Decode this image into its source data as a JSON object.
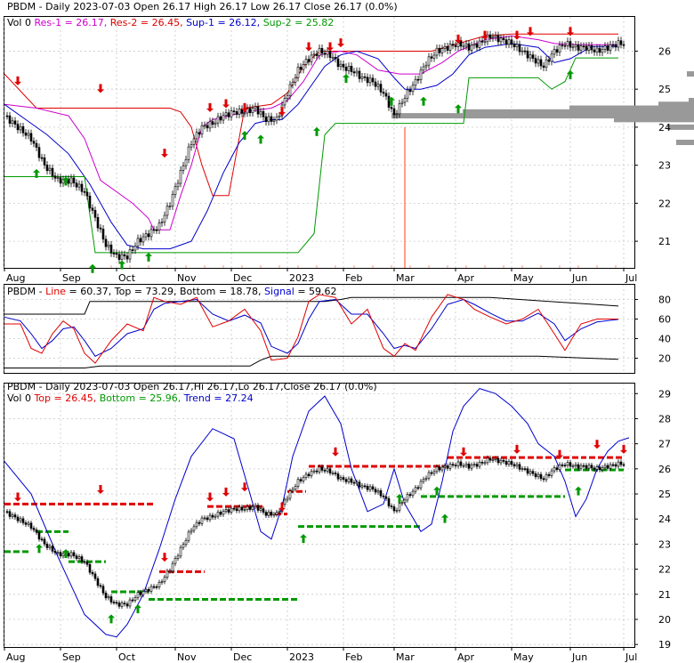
{
  "colors": {
    "red": "#e00000",
    "green": "#009900",
    "blue": "#0000cc",
    "magenta": "#cc00cc",
    "orange": "#ff8060",
    "grey": "#999999",
    "black": "#000000"
  },
  "chart_data": [
    {
      "type": "line",
      "panel": "price",
      "header_line1": "PBDM - Daily 2023-07-03 Open 26.17   High 26.17   Low 26.17   Close 26.17 (0.0%)",
      "header_line2": [
        {
          "text": "Vol 0 ",
          "color": "black"
        },
        {
          "text": "Res-1 = 26.17, ",
          "color": "magenta"
        },
        {
          "text": "Res-2 = 26.45, ",
          "color": "red"
        },
        {
          "text": "Sup-1 = 26.12, ",
          "color": "blue"
        },
        {
          "text": "Sup-2 = 25.82",
          "color": "green"
        }
      ],
      "x_ticks": [
        "Aug",
        "Sep",
        "Oct",
        "Nov",
        "Dec",
        "2023",
        "Feb",
        "Mar",
        "Apr",
        "May",
        "Jun",
        "Jul"
      ],
      "y_ticks": [
        21,
        22,
        23,
        24,
        25,
        26
      ],
      "ylim": [
        20.3,
        26.9
      ],
      "t_range": [
        0,
        236
      ],
      "tick_t": [
        0,
        21,
        42,
        64,
        85,
        106,
        127,
        146,
        169,
        190,
        212,
        232
      ],
      "close": {
        "t": [
          0,
          5,
          10,
          15,
          20,
          25,
          30,
          34,
          38,
          42,
          46,
          50,
          54,
          58,
          62,
          66,
          70,
          74,
          78,
          82,
          86,
          90,
          94,
          98,
          102,
          106,
          110,
          114,
          118,
          122,
          126,
          130,
          134,
          138,
          142,
          146,
          150,
          154,
          158,
          162,
          166,
          170,
          174,
          178,
          182,
          186,
          190,
          194,
          198,
          202,
          206,
          210,
          214,
          218,
          222,
          226,
          230
        ],
        "v": [
          24.3,
          24.0,
          23.7,
          23.0,
          22.6,
          22.6,
          22.3,
          21.6,
          20.9,
          20.6,
          20.6,
          21.0,
          21.2,
          21.4,
          22.0,
          22.8,
          23.6,
          24.0,
          24.1,
          24.3,
          24.4,
          24.4,
          24.5,
          24.2,
          24.2,
          24.9,
          25.5,
          25.8,
          26.0,
          25.9,
          25.6,
          25.5,
          25.3,
          25.2,
          24.9,
          24.3,
          24.8,
          25.2,
          25.7,
          26.0,
          26.1,
          26.2,
          26.1,
          26.2,
          26.4,
          26.3,
          26.2,
          26.0,
          25.8,
          25.6,
          26.0,
          26.2,
          26.1,
          26.1,
          26.0,
          26.1,
          26.2
        ]
      },
      "res_red": {
        "t": [
          0,
          12,
          24,
          36,
          48,
          56,
          62,
          66,
          70,
          74,
          78,
          84,
          90,
          100,
          106,
          112,
          118,
          124,
          130,
          140,
          150,
          160,
          170,
          180,
          190,
          200,
          206,
          214,
          220,
          230
        ],
        "v": [
          25.4,
          24.5,
          24.5,
          24.5,
          24.5,
          24.5,
          24.5,
          24.4,
          24.0,
          23.0,
          22.2,
          22.2,
          24.5,
          24.6,
          24.9,
          25.6,
          26.0,
          26.0,
          26.0,
          26.0,
          26.0,
          26.0,
          26.2,
          26.4,
          26.45,
          26.45,
          26.45,
          26.45,
          26.45,
          26.45
        ]
      },
      "res_magenta": {
        "t": [
          0,
          12,
          24,
          30,
          36,
          42,
          48,
          54,
          56,
          62,
          66,
          70,
          74,
          78,
          84,
          90,
          100,
          106,
          112,
          118,
          126,
          132,
          140,
          148,
          156,
          164,
          170,
          180,
          190,
          200,
          206,
          214,
          222,
          230
        ],
        "v": [
          24.6,
          24.5,
          24.3,
          23.7,
          22.6,
          22.3,
          22.0,
          21.6,
          21.3,
          21.3,
          22.2,
          23.0,
          24.0,
          24.2,
          24.3,
          24.4,
          24.5,
          24.7,
          25.2,
          25.9,
          26.0,
          25.9,
          25.5,
          25.4,
          25.4,
          25.7,
          26.0,
          26.3,
          26.4,
          26.3,
          26.2,
          26.17,
          26.17,
          26.17
        ]
      },
      "sup_blue": {
        "t": [
          0,
          8,
          16,
          24,
          32,
          40,
          46,
          52,
          56,
          62,
          66,
          70,
          76,
          82,
          88,
          94,
          100,
          104,
          110,
          116,
          120,
          126,
          132,
          140,
          146,
          150,
          156,
          162,
          168,
          174,
          180,
          190,
          200,
          206,
          212,
          220,
          230
        ],
        "v": [
          24.6,
          24.2,
          23.8,
          23.3,
          22.5,
          21.5,
          20.9,
          20.8,
          20.8,
          20.8,
          20.9,
          21.0,
          21.8,
          22.8,
          23.6,
          24.1,
          24.2,
          24.2,
          24.6,
          25.2,
          25.6,
          25.9,
          26.0,
          25.8,
          25.3,
          25.0,
          25.0,
          25.1,
          25.4,
          25.9,
          26.1,
          26.2,
          26.1,
          25.7,
          25.8,
          26.12,
          26.12
        ]
      },
      "sup_green": {
        "t": [
          0,
          30,
          34,
          60,
          110,
          116,
          120,
          124,
          150,
          172,
          174,
          200,
          205,
          210,
          214,
          230
        ],
        "v": [
          22.7,
          22.7,
          20.7,
          20.7,
          20.7,
          21.2,
          23.8,
          24.1,
          24.1,
          24.1,
          25.3,
          25.3,
          25.0,
          25.2,
          25.82,
          25.82
        ]
      },
      "volume_profile": {
        "levels": [
          25.4,
          24.7,
          24.6,
          24.5,
          24.4,
          24.3,
          24.2,
          24.0,
          23.6
        ],
        "lengths": [
          8,
          6,
          40,
          140,
          260,
          340,
          90,
          30,
          20
        ]
      },
      "down_arrows": [
        [
          5,
          25.1
        ],
        [
          36,
          24.9
        ],
        [
          60,
          23.2
        ],
        [
          77,
          24.4
        ],
        [
          83,
          24.5
        ],
        [
          90,
          24.4
        ],
        [
          104,
          24.3
        ],
        [
          114,
          26.0
        ],
        [
          122,
          26.0
        ],
        [
          126,
          26.1
        ],
        [
          170,
          26.2
        ],
        [
          180,
          26.3
        ],
        [
          192,
          26.3
        ],
        [
          197,
          26.4
        ],
        [
          212,
          26.4
        ]
      ],
      "up_arrows": [
        [
          12,
          22.9
        ],
        [
          23,
          22.7
        ],
        [
          33,
          20.4
        ],
        [
          44,
          20.5
        ],
        [
          54,
          20.7
        ],
        [
          90,
          23.9
        ],
        [
          96,
          23.8
        ],
        [
          117,
          24.0
        ],
        [
          128,
          25.4
        ],
        [
          145,
          24.8
        ],
        [
          157,
          24.8
        ],
        [
          170,
          24.6
        ],
        [
          212,
          25.5
        ]
      ],
      "orange_spike": {
        "t": 150,
        "top": 24.0
      }
    },
    {
      "type": "line",
      "panel": "stochastic",
      "header": [
        {
          "text": "PBDM - ",
          "color": "black"
        },
        {
          "text": "Line",
          "color": "red"
        },
        {
          "text": " = 60.37, Top = 73.29, Bottom = 18.78, ",
          "color": "black"
        },
        {
          "text": "Signal",
          "color": "blue"
        },
        {
          "text": " = 59.62",
          "color": "black"
        }
      ],
      "y_ticks": [
        20,
        40,
        60,
        80
      ],
      "ylim": [
        5,
        95
      ],
      "line": {
        "t": [
          0,
          6,
          10,
          14,
          18,
          22,
          26,
          30,
          34,
          40,
          46,
          52,
          56,
          60,
          66,
          72,
          78,
          84,
          90,
          96,
          100,
          106,
          110,
          114,
          118,
          124,
          130,
          136,
          142,
          146,
          150,
          154,
          160,
          166,
          172,
          176,
          182,
          188,
          194,
          200,
          206,
          210,
          216,
          222,
          230
        ],
        "v": [
          55,
          55,
          30,
          25,
          45,
          58,
          50,
          25,
          15,
          38,
          55,
          48,
          82,
          78,
          75,
          82,
          52,
          58,
          70,
          48,
          18,
          20,
          42,
          78,
          85,
          82,
          55,
          70,
          30,
          22,
          35,
          28,
          62,
          85,
          80,
          70,
          62,
          55,
          60,
          70,
          45,
          28,
          55,
          60,
          60
        ]
      },
      "signal": {
        "t": [
          0,
          6,
          10,
          14,
          18,
          22,
          26,
          30,
          34,
          40,
          46,
          52,
          56,
          60,
          66,
          72,
          78,
          84,
          90,
          96,
          100,
          106,
          110,
          114,
          118,
          124,
          130,
          136,
          142,
          146,
          150,
          154,
          160,
          166,
          172,
          176,
          182,
          188,
          194,
          200,
          206,
          210,
          216,
          222,
          230
        ],
        "v": [
          62,
          58,
          45,
          30,
          38,
          50,
          52,
          38,
          22,
          30,
          45,
          50,
          70,
          76,
          78,
          80,
          65,
          58,
          64,
          56,
          32,
          25,
          35,
          60,
          78,
          80,
          65,
          65,
          45,
          30,
          33,
          30,
          50,
          75,
          80,
          75,
          66,
          58,
          58,
          66,
          55,
          38,
          50,
          57,
          59.6
        ]
      },
      "top": {
        "t": [
          0,
          30,
          32,
          60,
          120,
          126,
          130,
          180,
          182,
          230
        ],
        "v": [
          65,
          65,
          78,
          78,
          78,
          80,
          82,
          82,
          82,
          73.3
        ]
      },
      "bottom": {
        "t": [
          0,
          30,
          36,
          92,
          96,
          100,
          108,
          120,
          130,
          150,
          160,
          180,
          200,
          230
        ],
        "v": [
          10,
          10,
          12,
          12,
          18,
          22,
          22,
          22,
          22,
          22,
          22,
          22,
          22,
          18.8
        ]
      }
    },
    {
      "type": "line",
      "panel": "trend",
      "header_line1": "PBDM - Daily 2023-07-03 Open 26.17,Hi 26.17,Lo 26.17,Close 26.17 (0.0%)",
      "header_line2": [
        {
          "text": "Vol 0 ",
          "color": "black"
        },
        {
          "text": "Top = 26.45, ",
          "color": "red"
        },
        {
          "text": "Bottom = 25.96, ",
          "color": "green"
        },
        {
          "text": "Trend = 27.24",
          "color": "blue"
        }
      ],
      "x_ticks": [
        "Aug",
        "Sep",
        "Oct",
        "Nov",
        "Dec",
        "2023",
        "Feb",
        "Mar",
        "Apr",
        "May",
        "Jun",
        "Jul"
      ],
      "y_ticks": [
        19,
        20,
        21,
        22,
        23,
        24,
        25,
        26,
        27,
        28,
        29
      ],
      "ylim": [
        18.9,
        29.4
      ],
      "trend": {
        "t": [
          0,
          10,
          20,
          30,
          38,
          42,
          46,
          52,
          58,
          64,
          70,
          78,
          86,
          92,
          96,
          100,
          104,
          108,
          114,
          120,
          126,
          130,
          136,
          142,
          146,
          150,
          156,
          160,
          164,
          168,
          172,
          178,
          184,
          190,
          196,
          200,
          206,
          210,
          214,
          218,
          222,
          226,
          230,
          234
        ],
        "v": [
          26.3,
          25.0,
          22.5,
          20.2,
          19.4,
          19.3,
          19.8,
          21.0,
          22.8,
          24.8,
          26.5,
          27.6,
          27.2,
          25.0,
          23.5,
          23.2,
          24.5,
          26.5,
          28.3,
          28.9,
          27.8,
          26.0,
          24.3,
          24.6,
          26.0,
          24.6,
          23.5,
          23.8,
          25.5,
          27.5,
          28.5,
          29.2,
          29.0,
          28.5,
          27.8,
          27.0,
          26.5,
          25.5,
          24.1,
          24.8,
          26.0,
          26.7,
          27.1,
          27.24
        ]
      },
      "top_segments": [
        [
          0,
          56,
          24.6
        ],
        [
          58,
          75,
          21.9
        ],
        [
          76,
          91,
          24.5
        ],
        [
          91,
          97,
          24.5
        ],
        [
          98,
          106,
          24.2
        ],
        [
          106,
          113,
          25.1
        ],
        [
          114,
          165,
          26.1
        ],
        [
          166,
          218,
          26.45
        ],
        [
          219,
          232,
          26.45
        ]
      ],
      "bottom_segments": [
        [
          0,
          10,
          22.7
        ],
        [
          12,
          24,
          23.5
        ],
        [
          24,
          38,
          22.3
        ],
        [
          40,
          54,
          21.1
        ],
        [
          54,
          110,
          20.8
        ],
        [
          110,
          156,
          23.7
        ],
        [
          156,
          210,
          24.9
        ],
        [
          210,
          232,
          25.96
        ]
      ],
      "down_arrows": [
        [
          5,
          24.7
        ],
        [
          36,
          25.0
        ],
        [
          60,
          22.3
        ],
        [
          77,
          24.7
        ],
        [
          83,
          24.9
        ],
        [
          90,
          25.1
        ],
        [
          104,
          24.3
        ],
        [
          124,
          26.5
        ],
        [
          172,
          26.5
        ],
        [
          192,
          26.6
        ],
        [
          208,
          26.4
        ],
        [
          222,
          26.8
        ],
        [
          232,
          26.6
        ]
      ],
      "up_arrows": [
        [
          13,
          23.0
        ],
        [
          23,
          22.8
        ],
        [
          40,
          20.2
        ],
        [
          50,
          20.6
        ],
        [
          112,
          23.4
        ],
        [
          148,
          25.0
        ],
        [
          162,
          25.3
        ],
        [
          165,
          24.2
        ],
        [
          215,
          25.3
        ]
      ]
    }
  ]
}
